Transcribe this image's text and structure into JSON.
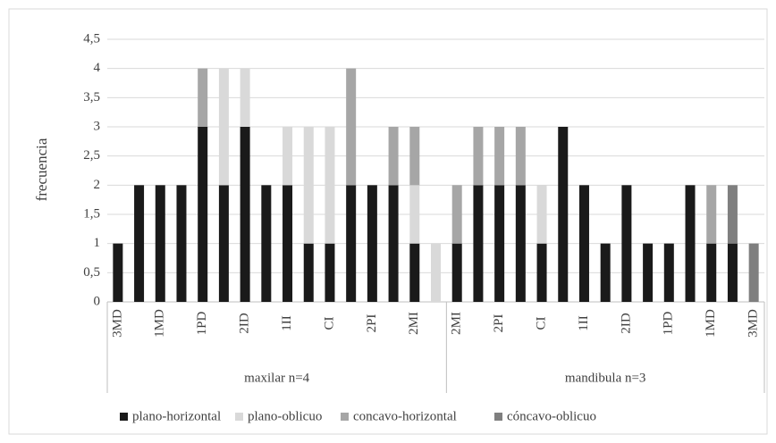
{
  "chart_data": {
    "type": "stacked-bar",
    "y_label": "frecuencia",
    "groups": [
      {
        "name": "maxilar n=4",
        "categories": [
          "3MD",
          null,
          "1MD",
          null,
          "1PD",
          null,
          "2ID",
          null,
          "1II",
          null,
          "CI",
          null,
          "2PI",
          null,
          "2MI",
          null
        ]
      },
      {
        "name": "mandibula n=3",
        "categories": [
          "2MI",
          null,
          "2PI",
          null,
          "CI",
          null,
          "1II",
          null,
          "2ID",
          null,
          "1PD",
          null,
          "1MD",
          null,
          "3MD"
        ]
      }
    ],
    "series": [
      {
        "name": "plano-horizontal",
        "color": "#1a1a1a",
        "values": [
          1,
          2,
          2,
          2,
          3,
          2,
          3,
          2,
          2,
          1,
          1,
          2,
          2,
          2,
          1,
          0,
          1,
          2,
          2,
          2,
          1,
          3,
          2,
          1,
          2,
          1,
          1,
          2,
          1,
          1,
          0
        ]
      },
      {
        "name": "plano-oblicuo",
        "color": "#d9d9d9",
        "values": [
          0,
          0,
          0,
          0,
          0,
          2,
          1,
          0,
          1,
          2,
          2,
          0,
          0,
          0,
          1,
          1,
          0,
          0,
          0,
          0,
          1,
          0,
          0,
          0,
          0,
          0,
          0,
          0,
          0,
          0,
          0
        ]
      },
      {
        "name": "concavo-horizontal",
        "color": "#a6a6a6",
        "values": [
          0,
          0,
          0,
          0,
          1,
          0,
          0,
          0,
          0,
          0,
          0,
          2,
          0,
          1,
          1,
          0,
          1,
          1,
          1,
          1,
          0,
          0,
          0,
          0,
          0,
          0,
          0,
          0,
          1,
          0,
          0
        ]
      },
      {
        "name": "cóncavo-oblicuo",
        "color": "#7f7f7f",
        "values": [
          0,
          0,
          0,
          0,
          0,
          0,
          0,
          0,
          0,
          0,
          0,
          0,
          0,
          0,
          0,
          0,
          0,
          0,
          0,
          0,
          0,
          0,
          0,
          0,
          0,
          0,
          0,
          0,
          0,
          1,
          1
        ]
      }
    ],
    "ylim": [
      0,
      4.5
    ],
    "yticks": [
      0,
      {
        "value": 0.5,
        "label": "0,5"
      },
      1,
      {
        "value": 1.5,
        "label": "1,5"
      },
      2,
      {
        "value": 2.5,
        "label": "2,5"
      },
      3,
      {
        "value": 3.5,
        "label": "3,5"
      },
      4,
      {
        "value": 4.5,
        "label": "4,5"
      }
    ],
    "grid": true,
    "legend": "bottom"
  }
}
